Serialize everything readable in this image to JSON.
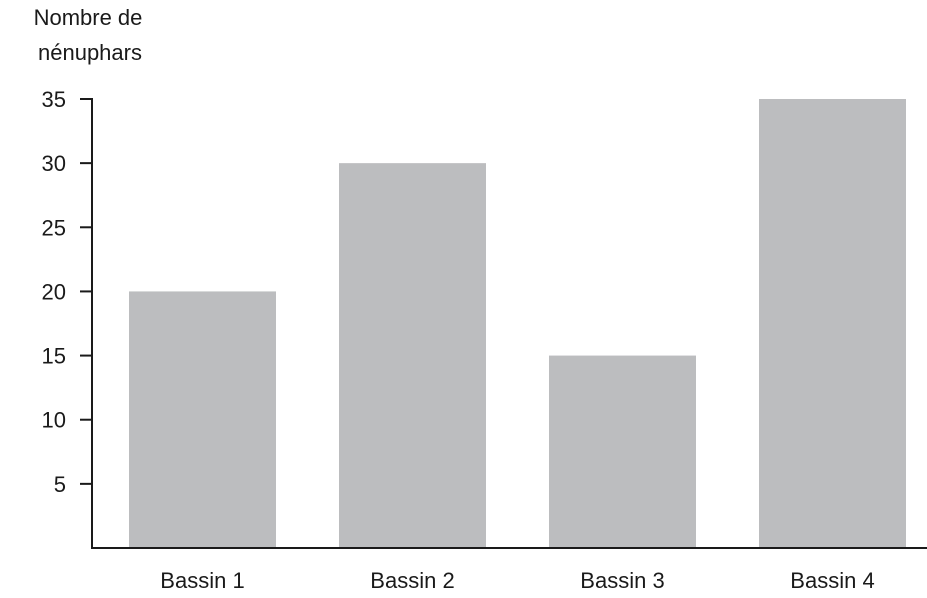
{
  "chart_data": {
    "type": "bar",
    "ylabel_lines": [
      "Nombre de",
      "nénuphars"
    ],
    "xlabel": "",
    "categories": [
      "Bassin 1",
      "Bassin 2",
      "Bassin 3",
      "Bassin 4"
    ],
    "values": [
      20,
      30,
      15,
      35
    ],
    "ylim": [
      0,
      35
    ],
    "yticks": [
      5,
      10,
      15,
      20,
      25,
      30,
      35
    ],
    "grid": false,
    "bar_color": "#bcbdbf",
    "axis_color": "#1a1a1a"
  }
}
